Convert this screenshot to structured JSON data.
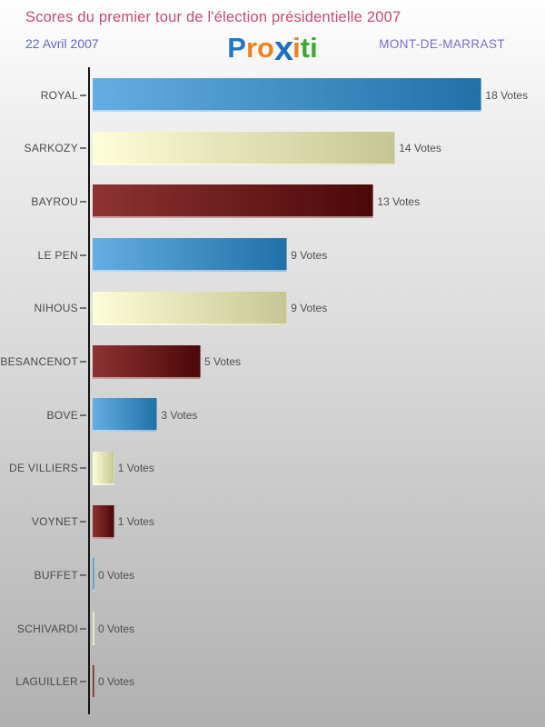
{
  "logo": {
    "name": "Proxiti",
    "letters": [
      {
        "ch": "P",
        "color": "#2176c7",
        "big": false
      },
      {
        "ch": "r",
        "color": "#f0821e",
        "big": false
      },
      {
        "ch": "o",
        "color": "#f0821e",
        "big": false
      },
      {
        "ch": "x",
        "color": "#1e6fc0",
        "big": true
      },
      {
        "ch": "i",
        "color": "#f0821e",
        "big": false
      },
      {
        "ch": "t",
        "color": "#3aaa35",
        "big": false
      },
      {
        "ch": "i",
        "color": "#3aaa35",
        "big": false
      }
    ]
  },
  "chart_data": {
    "type": "bar",
    "orientation": "horizontal",
    "title": "Scores du premier tour de l'élection présidentielle 2007",
    "subtitle_date": "22 Avril 2007",
    "location": "MONT-DE-MARRAST",
    "unit": "Votes",
    "categories": [
      "ROYAL",
      "SARKOZY",
      "BAYROU",
      "LE PEN",
      "NIHOUS",
      "BESANCENOT",
      "BOVE",
      "DE VILLIERS",
      "VOYNET",
      "BUFFET",
      "SCHIVARDI",
      "LAGUILLER"
    ],
    "values": [
      18,
      14,
      13,
      9,
      9,
      5,
      3,
      1,
      1,
      0,
      0,
      0
    ],
    "value_labels": [
      "18 Votes",
      "14 Votes",
      "13 Votes",
      "9 Votes",
      "9 Votes",
      "5 Votes",
      "3 Votes",
      "1 Votes",
      "1 Votes",
      "0 Votes",
      "0 Votes",
      "0 Votes"
    ],
    "xlim": [
      0,
      18
    ],
    "grid": false,
    "legend": false,
    "axis_color": "#141414",
    "bar_palette_cycle": [
      "blue",
      "cream",
      "darkred"
    ],
    "palettes": {
      "blue": {
        "from": "#63aee2",
        "to": "#2170a8"
      },
      "cream": {
        "from": "#fdfdd9",
        "to": "#c6c693"
      },
      "darkred": {
        "from": "#8e3333",
        "to": "#4b0808"
      }
    },
    "text_colors": {
      "title": "#c94b73",
      "date": "#6362cf",
      "location": "#7a68d8",
      "labels": "#4a4a4a"
    }
  }
}
